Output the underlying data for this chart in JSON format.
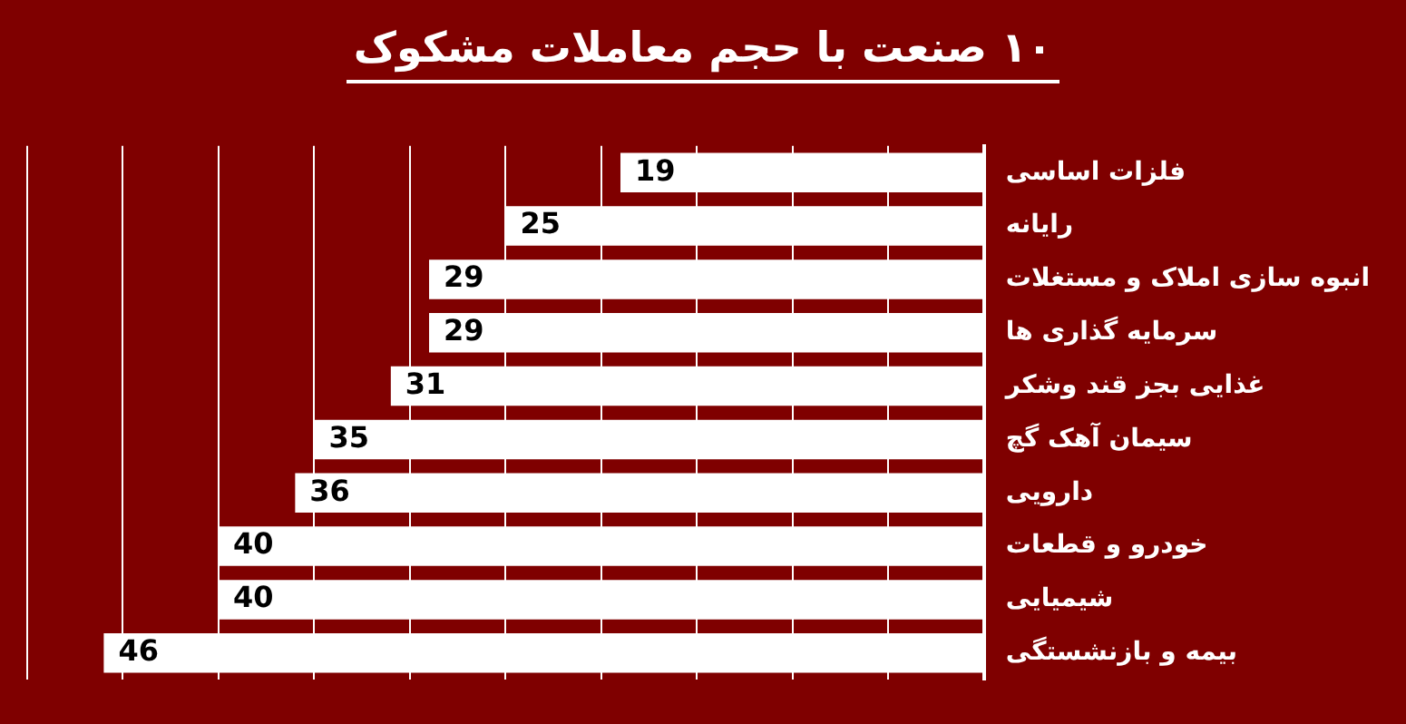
{
  "chart_data": {
    "type": "bar",
    "orientation": "horizontal",
    "title": "۱۰ صنعت با حجم معاملات مشکوک",
    "categories": [
      "فلزات اساسی",
      "رایانه",
      "انبوه سازی املاک و مستغلات",
      "سرمایه گذاری ها",
      "غذایی بجز قند وشکر",
      "سیمان آهک گچ",
      "دارویی",
      "خودرو و قطعات",
      "شیمیایی",
      "بیمه و بازنشستگی"
    ],
    "values": [
      19,
      25,
      29,
      29,
      31,
      35,
      36,
      40,
      40,
      46
    ],
    "color": "#ffffff",
    "xlim": [
      50,
      0
    ],
    "xticks": [
      {
        "value": 0,
        "label": null
      },
      {
        "value": 5,
        "label": null
      },
      {
        "value": 10,
        "label": null
      },
      {
        "value": 15,
        "label": null
      },
      {
        "value": 20,
        "label": null
      },
      {
        "value": 25,
        "label": null
      },
      {
        "value": 30,
        "label": null
      },
      {
        "value": 35,
        "label": null
      },
      {
        "value": 40,
        "label": null
      },
      {
        "value": 45,
        "label": null
      },
      {
        "value": 50,
        "label": null
      }
    ],
    "tick_labels": "y",
    "grid": "x",
    "data_labels": true,
    "legend": false
  }
}
